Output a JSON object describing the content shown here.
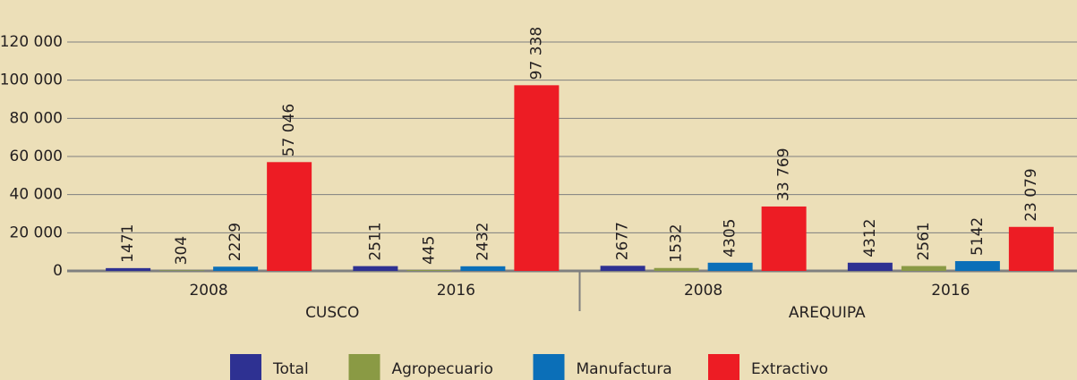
{
  "chart_data": {
    "type": "bar",
    "categories": [
      "2008",
      "2016",
      "2008",
      "2016"
    ],
    "groups": [
      "CUSCO",
      "AREQUIPA"
    ],
    "series": [
      {
        "name": "Total",
        "color": "#2e3192",
        "values": [
          1471,
          2511,
          2677,
          4312
        ],
        "value_labels": [
          "1471",
          "2511",
          "2677",
          "4312"
        ]
      },
      {
        "name": "Agropecuario",
        "color": "#8a9a44",
        "values": [
          304,
          445,
          1532,
          2561
        ],
        "value_labels": [
          "304",
          "445",
          "1532",
          "2561"
        ]
      },
      {
        "name": "Manufactura",
        "color": "#0b6fb8",
        "values": [
          2229,
          2432,
          4305,
          5142
        ],
        "value_labels": [
          "2229",
          "2432",
          "4305",
          "5142"
        ]
      },
      {
        "name": "Extractivo",
        "color": "#ed1c24",
        "values": [
          57046,
          97338,
          33769,
          23079
        ],
        "value_labels": [
          "57 046",
          "97 338",
          "33 769",
          "23 079"
        ]
      }
    ],
    "ylim": [
      0,
      120000
    ],
    "yticks": [
      0,
      {
        "value": 20000,
        "label": "20 000"
      },
      {
        "value": 40000,
        "label": "40 000"
      },
      {
        "value": 60000,
        "label": "60 000"
      },
      {
        "value": 80000,
        "label": "80 000"
      },
      {
        "value": 100000,
        "label": "100 000"
      },
      {
        "value": 120000,
        "label": "120 000"
      }
    ],
    "grid": true,
    "legend": "bottom"
  }
}
